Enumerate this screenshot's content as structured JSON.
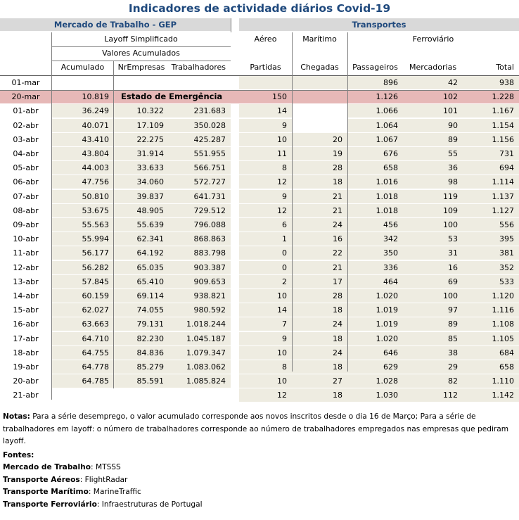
{
  "title": "Indicadores de actividade diários Covid-19",
  "group_headers": {
    "labour": "Mercado de Trabalho - GEP",
    "transport": "Transportes"
  },
  "subheaders": {
    "layoff": "Layoff Simplificado",
    "accumulated": "Valores Acumulados",
    "air": "Aéreo",
    "sea": "Marítimo",
    "rail": "Ferroviário"
  },
  "columns": [
    "Acumulado",
    "NrEmpresas",
    "Trabalhadores",
    "Partidas",
    "Chegadas",
    "Passageiros",
    "Mercadorias",
    "Total"
  ],
  "rows": [
    {
      "date": "01-mar",
      "values": [
        "",
        "",
        "",
        "",
        "",
        "896",
        "42",
        "938"
      ]
    },
    {
      "date": "20-mar",
      "values": [
        "10.819",
        "",
        "",
        "150",
        "",
        "1.126",
        "102",
        "1.228"
      ],
      "note": "Estado de Emergência",
      "highlight": true
    },
    {
      "date": "01-abr",
      "values": [
        "36.249",
        "10.322",
        "231.683",
        "14",
        "",
        "1.066",
        "101",
        "1.167"
      ]
    },
    {
      "date": "02-abr",
      "values": [
        "40.071",
        "17.109",
        "350.028",
        "9",
        "",
        "1.064",
        "90",
        "1.154"
      ]
    },
    {
      "date": "03-abr",
      "values": [
        "43.410",
        "22.275",
        "425.287",
        "10",
        "20",
        "1.067",
        "89",
        "1.156"
      ]
    },
    {
      "date": "04-abr",
      "values": [
        "43.804",
        "31.914",
        "551.955",
        "11",
        "19",
        "676",
        "55",
        "731"
      ]
    },
    {
      "date": "05-abr",
      "values": [
        "44.003",
        "33.633",
        "566.751",
        "8",
        "28",
        "658",
        "36",
        "694"
      ]
    },
    {
      "date": "06-abr",
      "values": [
        "47.756",
        "34.060",
        "572.727",
        "12",
        "18",
        "1.016",
        "98",
        "1.114"
      ]
    },
    {
      "date": "07-abr",
      "values": [
        "50.810",
        "39.837",
        "641.731",
        "9",
        "21",
        "1.018",
        "119",
        "1.137"
      ]
    },
    {
      "date": "08-abr",
      "values": [
        "53.675",
        "48.905",
        "729.512",
        "12",
        "21",
        "1.018",
        "109",
        "1.127"
      ]
    },
    {
      "date": "09-abr",
      "values": [
        "55.563",
        "55.639",
        "796.088",
        "6",
        "24",
        "456",
        "100",
        "556"
      ]
    },
    {
      "date": "10-abr",
      "values": [
        "55.994",
        "62.341",
        "868.863",
        "1",
        "16",
        "342",
        "53",
        "395"
      ]
    },
    {
      "date": "11-abr",
      "values": [
        "56.177",
        "64.192",
        "883.798",
        "0",
        "22",
        "350",
        "31",
        "381"
      ]
    },
    {
      "date": "12-abr",
      "values": [
        "56.282",
        "65.035",
        "903.387",
        "0",
        "21",
        "336",
        "16",
        "352"
      ]
    },
    {
      "date": "13-abr",
      "values": [
        "57.845",
        "65.410",
        "909.653",
        "2",
        "17",
        "464",
        "69",
        "533"
      ]
    },
    {
      "date": "14-abr",
      "values": [
        "60.159",
        "69.114",
        "938.821",
        "10",
        "28",
        "1.020",
        "100",
        "1.120"
      ]
    },
    {
      "date": "15-abr",
      "values": [
        "62.027",
        "74.055",
        "980.592",
        "14",
        "18",
        "1.019",
        "97",
        "1.116"
      ]
    },
    {
      "date": "16-abr",
      "values": [
        "63.663",
        "79.131",
        "1.018.244",
        "7",
        "24",
        "1.019",
        "89",
        "1.108"
      ]
    },
    {
      "date": "17-abr",
      "values": [
        "64.710",
        "82.230",
        "1.045.187",
        "9",
        "18",
        "1.020",
        "85",
        "1.105"
      ]
    },
    {
      "date": "18-abr",
      "values": [
        "64.755",
        "84.836",
        "1.079.347",
        "10",
        "24",
        "646",
        "38",
        "684"
      ]
    },
    {
      "date": "19-abr",
      "values": [
        "64.778",
        "85.279",
        "1.083.062",
        "8",
        "18",
        "629",
        "29",
        "658"
      ]
    },
    {
      "date": "20-abr",
      "values": [
        "64.785",
        "85.591",
        "1.085.824",
        "10",
        "27",
        "1.028",
        "82",
        "1.110"
      ]
    },
    {
      "date": "21-abr",
      "values": [
        "",
        "",
        "",
        "12",
        "18",
        "1.030",
        "112",
        "1.142"
      ]
    }
  ],
  "notes": {
    "notas_label": "Notas:",
    "notas_text": " Para a série desemprego, o valor acumulado corresponde aos novos inscritos desde o dia 16 de Março; Para a série de trabalhadores em layoff: o número de trabalhadores corresponde ao número de trabalhadores empregados nas empresas que pediram layoff.",
    "fontes_label": "Fontes:",
    "sources": [
      {
        "label": "Mercado de Trabalho",
        "value": ": MTSSS"
      },
      {
        "label": "Transporte Aéreos",
        "value": ": FlightRadar"
      },
      {
        "label": "Transporte Marítimo",
        "value": ": MarineTraffic"
      },
      {
        "label": "Transporte Ferroviário",
        "value": ": Infraestruturas de Portugal"
      }
    ]
  },
  "colors": {
    "title": "#1f497d",
    "header_bg": "#d9d9d9",
    "cell_bg": "#eeece1",
    "highlight": "#e6b8b7"
  }
}
